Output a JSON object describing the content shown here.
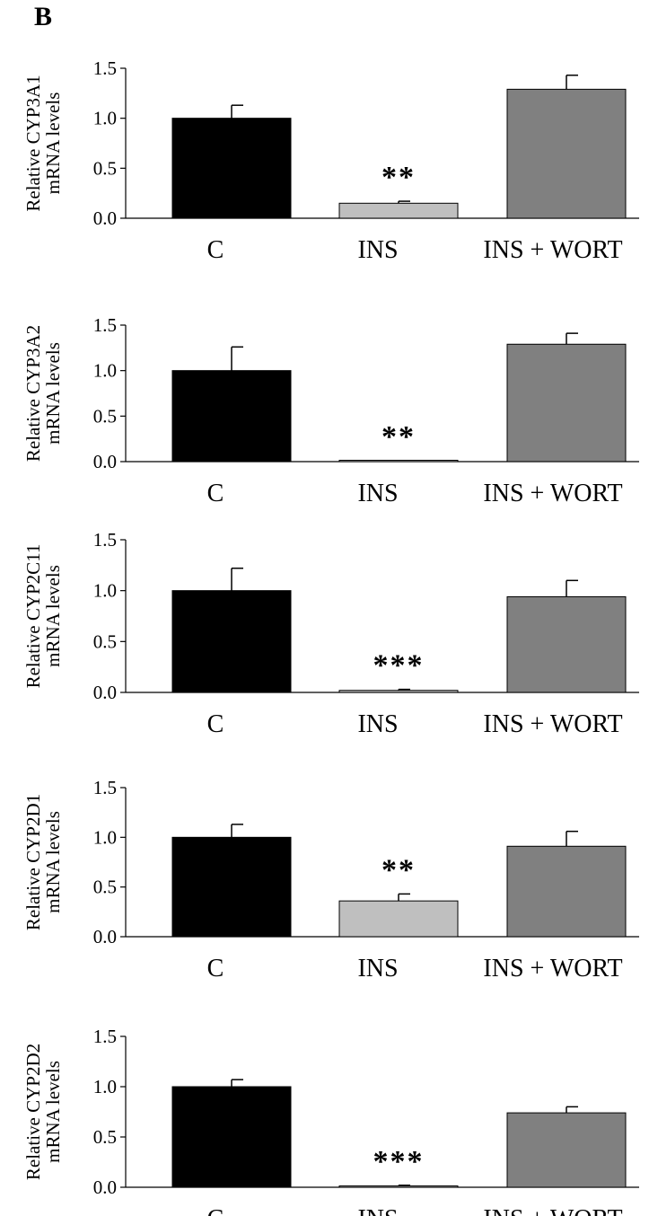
{
  "panel_label": "B",
  "colors": {
    "C": "#000000",
    "INS": "#bfbfbf",
    "INS + WORT": "#808080"
  },
  "chart_data": [
    {
      "type": "bar",
      "ylabel": [
        "Relative CYP3A1",
        "mRNA levels"
      ],
      "categories": [
        "C",
        "INS",
        "INS + WORT"
      ],
      "values": [
        1.0,
        0.15,
        1.29
      ],
      "errors": [
        0.13,
        0.02,
        0.14
      ],
      "significance": [
        "",
        "**",
        ""
      ],
      "ylim": [
        0,
        1.5
      ],
      "yticks": [
        "0.0",
        "0.5",
        "1.0",
        "1.5"
      ]
    },
    {
      "type": "bar",
      "ylabel": [
        "Relative CYP3A2",
        "mRNA levels"
      ],
      "categories": [
        "C",
        "INS",
        "INS + WORT"
      ],
      "values": [
        1.0,
        0.01,
        1.29
      ],
      "errors": [
        0.26,
        0.0,
        0.12
      ],
      "significance": [
        "",
        "**",
        ""
      ],
      "ylim": [
        0,
        1.5
      ],
      "yticks": [
        "0.0",
        "0.5",
        "1.0",
        "1.5"
      ]
    },
    {
      "type": "bar",
      "ylabel": [
        "Relative CYP2C11",
        "mRNA levels"
      ],
      "categories": [
        "C",
        "INS",
        "INS + WORT"
      ],
      "values": [
        1.0,
        0.02,
        0.94
      ],
      "errors": [
        0.22,
        0.01,
        0.16
      ],
      "significance": [
        "",
        "***",
        ""
      ],
      "ylim": [
        0,
        1.5
      ],
      "yticks": [
        "0.0",
        "0.5",
        "1.0",
        "1.5"
      ]
    },
    {
      "type": "bar",
      "ylabel": [
        "Relative CYP2D1",
        "mRNA levels"
      ],
      "categories": [
        "C",
        "INS",
        "INS + WORT"
      ],
      "values": [
        1.0,
        0.36,
        0.91
      ],
      "errors": [
        0.13,
        0.07,
        0.15
      ],
      "significance": [
        "",
        "**",
        ""
      ],
      "ylim": [
        0,
        1.5
      ],
      "yticks": [
        "0.0",
        "0.5",
        "1.0",
        "1.5"
      ]
    },
    {
      "type": "bar",
      "ylabel": [
        "Relative CYP2D2",
        "mRNA levels"
      ],
      "categories": [
        "C",
        "INS",
        "INS + WORT"
      ],
      "values": [
        1.0,
        0.01,
        0.74
      ],
      "errors": [
        0.07,
        0.01,
        0.06
      ],
      "significance": [
        "",
        "***",
        ""
      ],
      "ylim": [
        0,
        1.5
      ],
      "yticks": [
        "0.0",
        "0.5",
        "1.0",
        "1.5"
      ]
    }
  ]
}
